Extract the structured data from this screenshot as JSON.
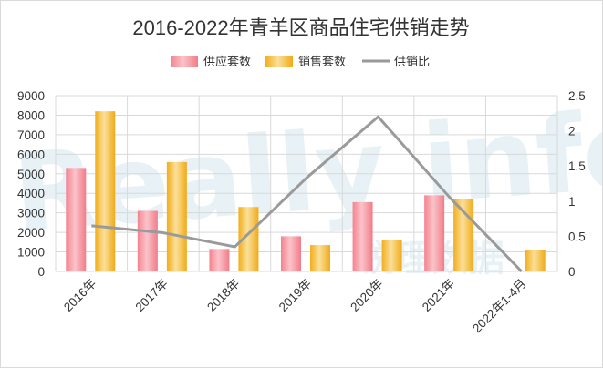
{
  "chart_data": {
    "type": "bar",
    "title": "2016-2022年青羊区商品住宅供销走势",
    "categories": [
      "2016年",
      "2017年",
      "2018年",
      "2019年",
      "2020年",
      "2021年",
      "2022年1-4月"
    ],
    "series": [
      {
        "name": "供应套数",
        "type": "bar",
        "axis": "left",
        "values": [
          5300,
          3100,
          1150,
          1800,
          3550,
          3900,
          0
        ]
      },
      {
        "name": "销售套数",
        "type": "bar",
        "axis": "left",
        "values": [
          8200,
          5600,
          3300,
          1350,
          1600,
          3700,
          1080
        ]
      },
      {
        "name": "供销比",
        "type": "line",
        "axis": "right",
        "values": [
          0.65,
          0.55,
          0.35,
          1.33,
          2.2,
          1.05,
          0.0
        ]
      }
    ],
    "y_left": {
      "min": 0,
      "max": 9000,
      "step": 1000
    },
    "y_right": {
      "min": 0,
      "max": 2.5,
      "step": 0.5
    },
    "grid": true,
    "legend_position": "top-center",
    "colors": {
      "supply": "#f4838f",
      "supply_light": "#f8b7be",
      "sales": "#f3b324",
      "sales_light": "#f8d783",
      "ratio_line": "#9a9a9a",
      "grid": "#d9d9d9"
    }
  },
  "watermark": {
    "text": "Really info",
    "text_cn": "锐理数据"
  }
}
